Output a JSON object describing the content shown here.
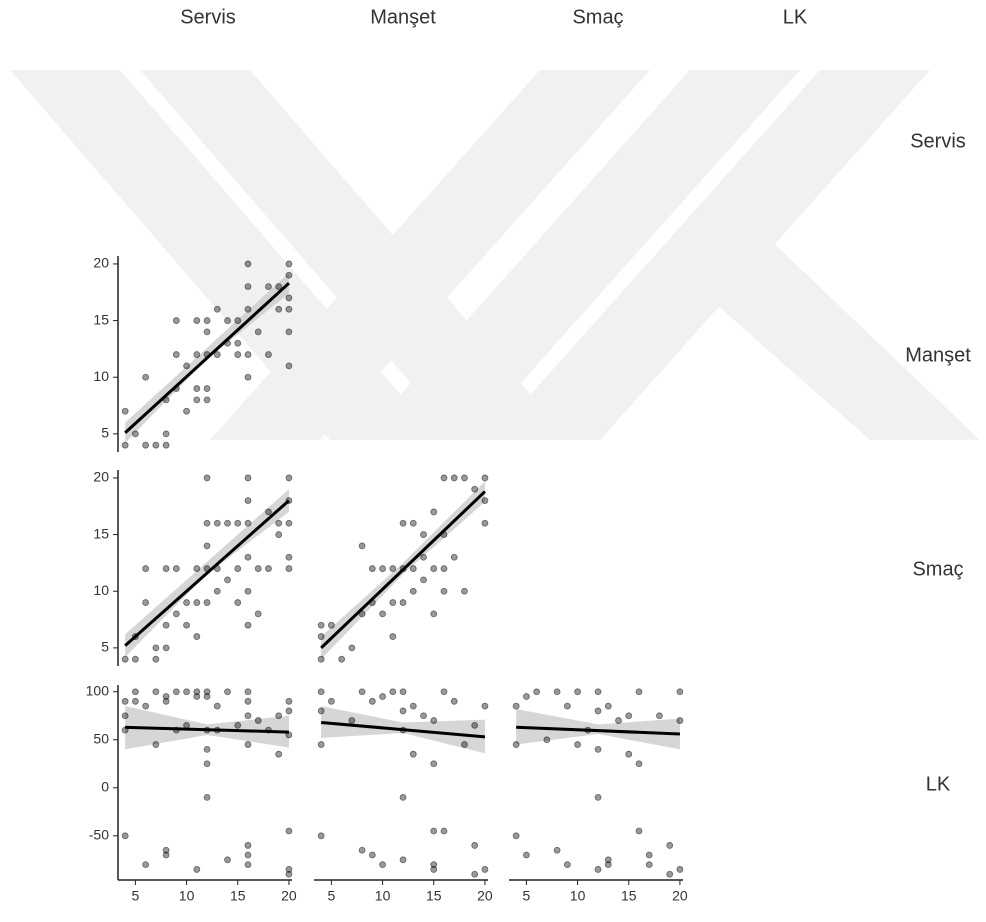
{
  "column_labels": [
    "Servis",
    "Manşet",
    "Smaç",
    "LK"
  ],
  "row_labels": [
    "Servis",
    "Manşet",
    "Smaç",
    "LK"
  ],
  "chart_data": [
    {
      "type": "scatter",
      "color": "#000000",
      "xlim": [
        3.3,
        20.3
      ],
      "ylim": [
        3.4,
        20.7
      ],
      "yticks": [
        5,
        10,
        15,
        20
      ],
      "x": [
        4,
        4,
        5,
        6,
        6,
        7,
        8,
        8,
        8,
        9,
        9,
        9,
        10,
        10,
        11,
        11,
        11,
        11,
        12,
        12,
        12,
        12,
        12,
        13,
        13,
        14,
        14,
        15,
        15,
        15,
        16,
        16,
        16,
        16,
        16,
        17,
        18,
        18,
        19,
        19,
        20,
        20,
        20,
        20,
        20,
        20
      ],
      "y": [
        4,
        7,
        5,
        10,
        4,
        4,
        4,
        5,
        8,
        9,
        12,
        15,
        7,
        11,
        8,
        9,
        12,
        15,
        8,
        9,
        12,
        14,
        15,
        12,
        16,
        13,
        15,
        12,
        13,
        15,
        10,
        12,
        16,
        18,
        20,
        14,
        12,
        18,
        16,
        18,
        11,
        14,
        16,
        17,
        19,
        20
      ],
      "trend": {
        "x": [
          4,
          20
        ],
        "y": [
          5.1,
          18.3
        ]
      },
      "band": {
        "x": [
          4,
          12,
          20
        ],
        "lower": [
          4.2,
          11.6,
          17.4
        ],
        "upper": [
          6.0,
          12.6,
          19.2
        ]
      }
    },
    {
      "type": "scatter",
      "color": "#000000",
      "xlim": [
        3.3,
        20.3
      ],
      "ylim": [
        3.4,
        20.7
      ],
      "yticks": [
        5,
        10,
        15,
        20
      ],
      "x": [
        4,
        5,
        5,
        6,
        6,
        7,
        7,
        8,
        8,
        8,
        9,
        9,
        10,
        10,
        11,
        11,
        11,
        12,
        12,
        12,
        12,
        12,
        13,
        13,
        13,
        14,
        14,
        15,
        15,
        15,
        16,
        16,
        16,
        16,
        16,
        16,
        17,
        17,
        18,
        18,
        19,
        19,
        20,
        20,
        20,
        20,
        20
      ],
      "y": [
        4,
        4,
        6,
        9,
        12,
        5,
        4,
        5,
        7,
        12,
        8,
        12,
        7,
        9,
        6,
        9,
        12,
        9,
        12,
        14,
        16,
        20,
        10,
        12,
        16,
        11,
        16,
        9,
        12,
        16,
        7,
        10,
        13,
        16,
        18,
        20,
        8,
        12,
        12,
        17,
        15,
        16,
        12,
        13,
        16,
        18,
        20
      ],
      "trend": {
        "x": [
          4,
          20
        ],
        "y": [
          5.2,
          18.0
        ]
      },
      "band": {
        "x": [
          4,
          12,
          20
        ],
        "lower": [
          4.2,
          11.5,
          17.0
        ],
        "upper": [
          6.2,
          12.6,
          19.0
        ]
      }
    },
    {
      "type": "scatter",
      "color": "#000000",
      "xlim": [
        3.3,
        20.3
      ],
      "ylim": [
        3.4,
        20.7
      ],
      "x": [
        4,
        4,
        4,
        5,
        6,
        7,
        8,
        8,
        9,
        9,
        10,
        10,
        11,
        11,
        11,
        12,
        12,
        12,
        13,
        13,
        13,
        14,
        14,
        14,
        15,
        15,
        15,
        16,
        16,
        16,
        16,
        17,
        17,
        18,
        18,
        19,
        20,
        20,
        20
      ],
      "y": [
        4,
        6,
        7,
        7,
        4,
        5,
        8,
        14,
        9,
        12,
        8,
        12,
        6,
        9,
        12,
        9,
        12,
        16,
        10,
        12,
        16,
        11,
        13,
        15,
        8,
        12,
        17,
        10,
        12,
        15,
        20,
        13,
        20,
        10,
        20,
        19,
        16,
        18,
        20
      ],
      "trend": {
        "x": [
          4,
          20
        ],
        "y": [
          5.0,
          18.8
        ]
      },
      "band": {
        "x": [
          4,
          12,
          20
        ],
        "lower": [
          4.0,
          11.5,
          17.9
        ],
        "upper": [
          6.0,
          12.5,
          19.7
        ]
      }
    },
    {
      "type": "scatter",
      "color": "#000000",
      "xlim": [
        3.3,
        20.3
      ],
      "ylim": [
        -96,
        107
      ],
      "xticks": [
        5,
        10,
        15,
        20
      ],
      "yticks": [
        -50,
        0,
        50,
        100
      ],
      "x": [
        4,
        4,
        4,
        4,
        5,
        5,
        6,
        6,
        7,
        7,
        8,
        8,
        8,
        8,
        9,
        9,
        10,
        10,
        11,
        11,
        11,
        12,
        12,
        12,
        12,
        12,
        12,
        13,
        13,
        14,
        14,
        15,
        16,
        16,
        16,
        16,
        16,
        16,
        16,
        17,
        18,
        19,
        19,
        20,
        20,
        20,
        20,
        20,
        20
      ],
      "y": [
        -50,
        60,
        75,
        90,
        90,
        100,
        -80,
        85,
        45,
        100,
        -65,
        -70,
        90,
        95,
        60,
        100,
        65,
        100,
        -85,
        95,
        100,
        -10,
        25,
        40,
        60,
        95,
        100,
        60,
        85,
        -75,
        100,
        65,
        -60,
        -70,
        -80,
        45,
        75,
        90,
        100,
        70,
        60,
        35,
        75,
        -45,
        -85,
        -90,
        55,
        80,
        90
      ],
      "trend": {
        "x": [
          4,
          20
        ],
        "y": [
          63,
          58
        ]
      },
      "band": {
        "x": [
          4,
          12,
          20
        ],
        "lower": [
          40,
          55,
          42
        ],
        "upper": [
          85,
          66,
          75
        ]
      }
    },
    {
      "type": "scatter",
      "color": "#000000",
      "xlim": [
        3.3,
        20.3
      ],
      "ylim": [
        -96,
        107
      ],
      "xticks": [
        5,
        10,
        15,
        20
      ],
      "x": [
        4,
        4,
        4,
        4,
        5,
        7,
        8,
        8,
        9,
        9,
        10,
        10,
        11,
        12,
        12,
        12,
        12,
        12,
        13,
        13,
        14,
        15,
        15,
        15,
        15,
        15,
        16,
        16,
        17,
        18,
        19,
        19,
        19,
        20,
        20
      ],
      "y": [
        -50,
        45,
        80,
        100,
        90,
        70,
        -65,
        100,
        -70,
        90,
        -80,
        95,
        100,
        -10,
        -75,
        60,
        80,
        100,
        35,
        85,
        75,
        -45,
        -80,
        -85,
        25,
        70,
        100,
        -45,
        90,
        45,
        -60,
        -90,
        65,
        -85,
        85
      ],
      "trend": {
        "x": [
          4,
          20
        ],
        "y": [
          68,
          53
        ]
      },
      "band": {
        "x": [
          4,
          12,
          20
        ],
        "lower": [
          52,
          57,
          36
        ],
        "upper": [
          85,
          68,
          71
        ]
      }
    },
    {
      "type": "scatter",
      "color": "#000000",
      "xlim": [
        3.3,
        20.3
      ],
      "ylim": [
        -96,
        107
      ],
      "xticks": [
        5,
        10,
        15,
        20
      ],
      "x": [
        4,
        4,
        4,
        5,
        5,
        6,
        7,
        8,
        8,
        9,
        9,
        10,
        10,
        11,
        12,
        12,
        12,
        12,
        12,
        13,
        13,
        13,
        14,
        15,
        15,
        16,
        16,
        16,
        17,
        17,
        18,
        19,
        19,
        20,
        20,
        20
      ],
      "y": [
        -50,
        45,
        85,
        -70,
        95,
        100,
        50,
        -65,
        100,
        -80,
        85,
        45,
        100,
        60,
        -10,
        -85,
        40,
        80,
        100,
        -75,
        -80,
        85,
        70,
        35,
        75,
        -45,
        25,
        100,
        -70,
        -80,
        75,
        -60,
        -90,
        -85,
        70,
        100
      ],
      "trend": {
        "x": [
          4,
          20
        ],
        "y": [
          63,
          56
        ]
      },
      "band": {
        "x": [
          4,
          12,
          20
        ],
        "lower": [
          45,
          56,
          40
        ],
        "upper": [
          82,
          66,
          72
        ]
      }
    }
  ]
}
